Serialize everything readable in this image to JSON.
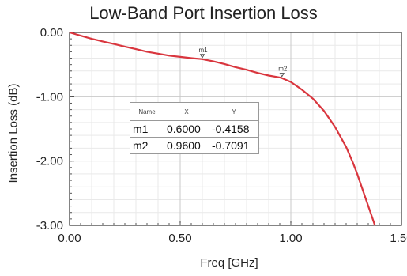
{
  "chart_data": {
    "type": "line",
    "title": "Low-Band Port Insertion Loss",
    "xlabel": "Freq [GHz]",
    "ylabel": "Insertion Loss (dB)",
    "xlim": [
      0.0,
      1.5
    ],
    "ylim": [
      -3.0,
      0.0
    ],
    "x_ticks": [
      "0.00",
      "0.50",
      "1.00",
      "1.50"
    ],
    "y_ticks": [
      "0.00",
      "-1.00",
      "-2.00",
      "-3.00"
    ],
    "grid": true,
    "series": [
      {
        "color": "#d9363e",
        "x": [
          0.0,
          0.05,
          0.1,
          0.15,
          0.2,
          0.25,
          0.3,
          0.35,
          0.4,
          0.45,
          0.5,
          0.55,
          0.6,
          0.65,
          0.7,
          0.75,
          0.8,
          0.85,
          0.9,
          0.95,
          0.96,
          1.0,
          1.05,
          1.1,
          1.15,
          1.2,
          1.25,
          1.28,
          1.3,
          1.32,
          1.34,
          1.36,
          1.37,
          1.38
        ],
        "y": [
          0.0,
          -0.05,
          -0.1,
          -0.14,
          -0.18,
          -0.22,
          -0.26,
          -0.3,
          -0.33,
          -0.36,
          -0.38,
          -0.4,
          -0.4158,
          -0.45,
          -0.49,
          -0.54,
          -0.58,
          -0.63,
          -0.67,
          -0.7,
          -0.7091,
          -0.77,
          -0.89,
          -1.03,
          -1.22,
          -1.47,
          -1.78,
          -2.02,
          -2.2,
          -2.4,
          -2.6,
          -2.8,
          -2.9,
          -3.0
        ]
      }
    ],
    "markers": [
      {
        "name": "m1",
        "x": 0.6,
        "y": -0.4158
      },
      {
        "name": "m2",
        "x": 0.96,
        "y": -0.7091
      }
    ],
    "table": {
      "headers": [
        "Name",
        "X",
        "Y"
      ],
      "rows": [
        [
          "m1",
          "0.6000",
          "-0.4158"
        ],
        [
          "m2",
          "0.9600",
          "-0.7091"
        ]
      ]
    }
  }
}
